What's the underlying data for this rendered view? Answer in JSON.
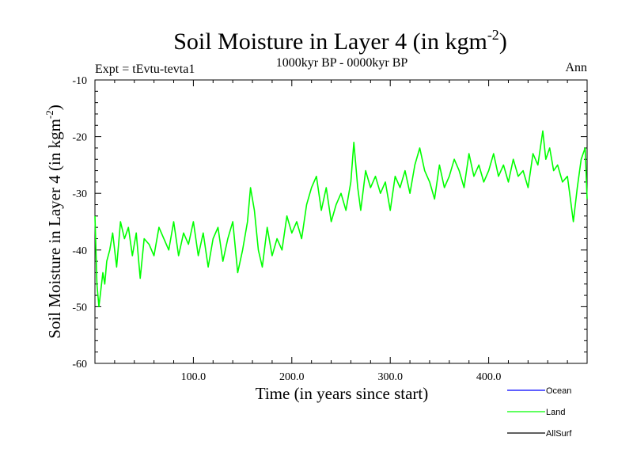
{
  "chart_data": {
    "type": "line",
    "title": "Soil Moisture in Layer 4 (in kgm",
    "title_superscript": "-2",
    "title_suffix": ")",
    "experiment_label": "Expt = tEvtu-tevta1",
    "period_label": "1000kyr BP - 0000kyr BP",
    "season_label": "Ann",
    "xlabel": "Time (in years since start)",
    "ylabel": "Soil Moisture in Layer 4 (in kgm",
    "ylabel_superscript": "-2",
    "ylabel_suffix": ")",
    "xlim": [
      0,
      500
    ],
    "ylim": [
      -60,
      -10
    ],
    "x_ticks": [
      {
        "value": 100,
        "label": "100.0"
      },
      {
        "value": 200,
        "label": "200.0"
      },
      {
        "value": 300,
        "label": "300.0"
      },
      {
        "value": 400,
        "label": "400.0"
      }
    ],
    "y_ticks": [
      {
        "value": -10,
        "label": "-10"
      },
      {
        "value": -20,
        "label": "-20"
      },
      {
        "value": -30,
        "label": "-30"
      },
      {
        "value": -40,
        "label": "-40"
      },
      {
        "value": -50,
        "label": "-50"
      },
      {
        "value": -60,
        "label": "-60"
      }
    ],
    "legend": [
      {
        "name": "Ocean",
        "color": "#0000ff"
      },
      {
        "name": "Land",
        "color": "#00ff00"
      },
      {
        "name": "AllSurf",
        "color": "#000000"
      }
    ],
    "series": [
      {
        "name": "Land",
        "color": "#00ff00",
        "x": [
          0,
          2,
          4,
          6,
          8,
          10,
          12,
          15,
          18,
          22,
          26,
          30,
          34,
          38,
          42,
          46,
          50,
          55,
          60,
          65,
          70,
          75,
          80,
          85,
          90,
          95,
          100,
          105,
          110,
          115,
          120,
          125,
          130,
          135,
          140,
          145,
          150,
          155,
          158,
          162,
          166,
          170,
          175,
          180,
          185,
          190,
          195,
          200,
          205,
          210,
          215,
          220,
          225,
          230,
          235,
          240,
          245,
          250,
          255,
          260,
          263,
          267,
          270,
          275,
          280,
          285,
          290,
          295,
          300,
          305,
          310,
          315,
          320,
          325,
          330,
          335,
          340,
          345,
          350,
          355,
          360,
          365,
          370,
          375,
          380,
          385,
          390,
          395,
          400,
          405,
          410,
          415,
          420,
          425,
          430,
          435,
          440,
          445,
          450,
          455,
          458,
          462,
          466,
          470,
          475,
          480,
          483,
          486,
          490,
          494,
          498,
          500
        ],
        "values": [
          -34,
          -46,
          -50,
          -47,
          -44,
          -46,
          -42,
          -40,
          -37,
          -43,
          -35,
          -38,
          -36,
          -41,
          -37,
          -45,
          -38,
          -39,
          -41,
          -36,
          -38,
          -40,
          -35,
          -41,
          -37,
          -39,
          -35,
          -41,
          -37,
          -43,
          -38,
          -36,
          -42,
          -38,
          -35,
          -44,
          -40,
          -35,
          -29,
          -33,
          -40,
          -43,
          -36,
          -41,
          -38,
          -40,
          -34,
          -37,
          -35,
          -38,
          -32,
          -29,
          -27,
          -33,
          -29,
          -35,
          -32,
          -30,
          -33,
          -28,
          -21,
          -29,
          -33,
          -26,
          -29,
          -27,
          -30,
          -28,
          -33,
          -27,
          -29,
          -26,
          -30,
          -25,
          -22,
          -26,
          -28,
          -31,
          -25,
          -29,
          -27,
          -24,
          -26,
          -29,
          -23,
          -27,
          -25,
          -28,
          -26,
          -23,
          -27,
          -25,
          -28,
          -24,
          -27,
          -26,
          -29,
          -23,
          -25,
          -19,
          -24,
          -22,
          -26,
          -25,
          -28,
          -27,
          -31,
          -35,
          -29,
          -24,
          -22,
          -31
        ]
      }
    ]
  }
}
